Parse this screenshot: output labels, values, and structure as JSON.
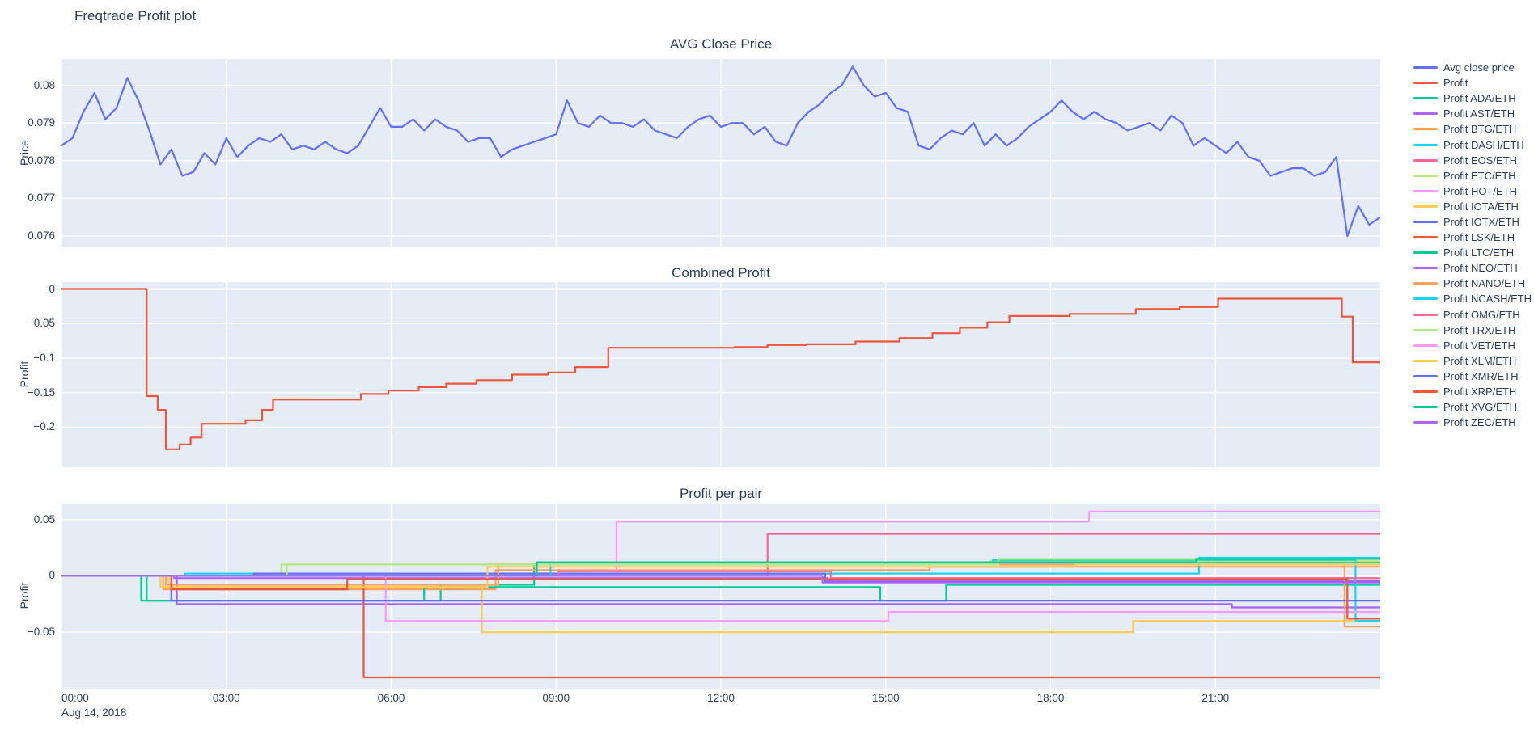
{
  "title": "Freqtrade Profit plot",
  "x_axis": {
    "ticks": [
      {
        "v": 0,
        "label": "00:00"
      },
      {
        "v": 3,
        "label": "03:00"
      },
      {
        "v": 6,
        "label": "06:00"
      },
      {
        "v": 9,
        "label": "09:00"
      },
      {
        "v": 12,
        "label": "12:00"
      },
      {
        "v": 15,
        "label": "15:00"
      },
      {
        "v": 18,
        "label": "18:00"
      },
      {
        "v": 21,
        "label": "21:00"
      }
    ],
    "date_label": "Aug 14, 2018"
  },
  "legend": {
    "items": [
      {
        "label": "Avg close price",
        "color": "#636EFA"
      },
      {
        "label": "Profit",
        "color": "#EF553B"
      },
      {
        "label": "Profit ADA/ETH",
        "color": "#00CC96"
      },
      {
        "label": "Profit AST/ETH",
        "color": "#AB63FA"
      },
      {
        "label": "Profit BTG/ETH",
        "color": "#FFA15A"
      },
      {
        "label": "Profit DASH/ETH",
        "color": "#19D3F3"
      },
      {
        "label": "Profit EOS/ETH",
        "color": "#FF6692"
      },
      {
        "label": "Profit ETC/ETH",
        "color": "#B6E880"
      },
      {
        "label": "Profit HOT/ETH",
        "color": "#FF97FF"
      },
      {
        "label": "Profit IOTA/ETH",
        "color": "#FECB52"
      },
      {
        "label": "Profit IOTX/ETH",
        "color": "#636EFA"
      },
      {
        "label": "Profit LSK/ETH",
        "color": "#EF553B"
      },
      {
        "label": "Profit LTC/ETH",
        "color": "#00CC96"
      },
      {
        "label": "Profit NEO/ETH",
        "color": "#AB63FA"
      },
      {
        "label": "Profit NANO/ETH",
        "color": "#FFA15A"
      },
      {
        "label": "Profit NCASH/ETH",
        "color": "#19D3F3"
      },
      {
        "label": "Profit OMG/ETH",
        "color": "#FF6692"
      },
      {
        "label": "Profit TRX/ETH",
        "color": "#B6E880"
      },
      {
        "label": "Profit VET/ETH",
        "color": "#FF97FF"
      },
      {
        "label": "Profit XLM/ETH",
        "color": "#FECB52"
      },
      {
        "label": "Profit XMR/ETH",
        "color": "#636EFA"
      },
      {
        "label": "Profit XRP/ETH",
        "color": "#EF553B"
      },
      {
        "label": "Profit XVG/ETH",
        "color": "#00CC96"
      },
      {
        "label": "Profit ZEC/ETH",
        "color": "#AB63FA"
      }
    ]
  },
  "chart_data": [
    {
      "type": "line",
      "title": "AVG Close Price",
      "ylabel": "Price",
      "xlim": [
        0,
        24
      ],
      "ylim": [
        0.0757,
        0.0807
      ],
      "grid": true,
      "legend_position": "right",
      "yticks": [
        {
          "v": 0.076,
          "label": "0.076"
        },
        {
          "v": 0.077,
          "label": "0.077"
        },
        {
          "v": 0.078,
          "label": "0.078"
        },
        {
          "v": 0.079,
          "label": "0.079"
        },
        {
          "v": 0.08,
          "label": "0.08"
        }
      ],
      "series": [
        {
          "name": "Avg close price",
          "color": "#636EFA",
          "mode": "line",
          "x_start": 0,
          "x_step": 0.2,
          "y": [
            0.0784,
            0.0786,
            0.0793,
            0.0798,
            0.0791,
            0.0794,
            0.0802,
            0.0796,
            0.0788,
            0.0779,
            0.0783,
            0.0776,
            0.0777,
            0.0782,
            0.0779,
            0.0786,
            0.0781,
            0.0784,
            0.0786,
            0.0785,
            0.0787,
            0.0783,
            0.0784,
            0.0783,
            0.0785,
            0.0783,
            0.0782,
            0.0784,
            0.0789,
            0.0794,
            0.0789,
            0.0789,
            0.0791,
            0.0788,
            0.0791,
            0.0789,
            0.0788,
            0.0785,
            0.0786,
            0.0786,
            0.0781,
            0.0783,
            0.0784,
            0.0785,
            0.0786,
            0.0787,
            0.0796,
            0.079,
            0.0789,
            0.0792,
            0.079,
            0.079,
            0.0789,
            0.0791,
            0.0788,
            0.0787,
            0.0786,
            0.0789,
            0.0791,
            0.0792,
            0.0789,
            0.079,
            0.079,
            0.0787,
            0.0789,
            0.0785,
            0.0784,
            0.079,
            0.0793,
            0.0795,
            0.0798,
            0.08,
            0.0805,
            0.08,
            0.0797,
            0.0798,
            0.0794,
            0.0793,
            0.0784,
            0.0783,
            0.0786,
            0.0788,
            0.0787,
            0.079,
            0.0784,
            0.0787,
            0.0784,
            0.0786,
            0.0789,
            0.0791,
            0.0793,
            0.0796,
            0.0793,
            0.0791,
            0.0793,
            0.0791,
            0.079,
            0.0788,
            0.0789,
            0.079,
            0.0788,
            0.0792,
            0.079,
            0.0784,
            0.0786,
            0.0784,
            0.0782,
            0.0785,
            0.0781,
            0.078,
            0.0776,
            0.0777,
            0.0778,
            0.0778,
            0.0776,
            0.0777,
            0.0781,
            0.076,
            0.0768,
            0.0763,
            0.0765
          ]
        }
      ]
    },
    {
      "type": "line",
      "title": "Combined Profit",
      "ylabel": "Profit",
      "xlim": [
        0,
        24
      ],
      "ylim": [
        -0.258,
        0.01
      ],
      "grid": true,
      "yticks": [
        {
          "v": 0,
          "label": "0"
        },
        {
          "v": -0.05,
          "label": "−0.05"
        },
        {
          "v": -0.1,
          "label": "−0.1"
        },
        {
          "v": -0.15,
          "label": "−0.15"
        },
        {
          "v": -0.2,
          "label": "−0.2"
        }
      ],
      "series": [
        {
          "name": "Profit",
          "color": "#EF553B",
          "mode": "steps",
          "points": [
            [
              0,
              0
            ],
            [
              1.55,
              -0.155
            ],
            [
              1.75,
              -0.175
            ],
            [
              1.9,
              -0.232
            ],
            [
              2.15,
              -0.225
            ],
            [
              2.35,
              -0.215
            ],
            [
              2.55,
              -0.195
            ],
            [
              3.35,
              -0.19
            ],
            [
              3.65,
              -0.175
            ],
            [
              3.85,
              -0.16
            ],
            [
              5.45,
              -0.152
            ],
            [
              5.95,
              -0.147
            ],
            [
              6.5,
              -0.142
            ],
            [
              7.0,
              -0.137
            ],
            [
              7.55,
              -0.132
            ],
            [
              8.2,
              -0.124
            ],
            [
              8.85,
              -0.121
            ],
            [
              9.35,
              -0.113
            ],
            [
              9.95,
              -0.085
            ],
            [
              12.25,
              -0.084
            ],
            [
              12.85,
              -0.081
            ],
            [
              13.55,
              -0.08
            ],
            [
              14.45,
              -0.076
            ],
            [
              15.25,
              -0.071
            ],
            [
              15.85,
              -0.064
            ],
            [
              16.35,
              -0.056
            ],
            [
              16.85,
              -0.048
            ],
            [
              17.25,
              -0.039
            ],
            [
              18.35,
              -0.036
            ],
            [
              19.55,
              -0.029
            ],
            [
              20.35,
              -0.026
            ],
            [
              21.05,
              -0.014
            ],
            [
              23.3,
              -0.04
            ],
            [
              23.5,
              -0.106
            ],
            [
              24,
              -0.106
            ]
          ]
        }
      ]
    },
    {
      "type": "line",
      "title": "Profit per pair",
      "ylabel": "Profit",
      "xlim": [
        0,
        24
      ],
      "ylim": [
        -0.1,
        0.064
      ],
      "grid": true,
      "yticks": [
        {
          "v": 0.05,
          "label": "0.05"
        },
        {
          "v": 0,
          "label": "0"
        },
        {
          "v": -0.05,
          "label": "−0.05"
        }
      ],
      "series": [
        {
          "name": "Profit ADA/ETH",
          "color": "#00CC96",
          "mode": "steps",
          "points": [
            [
              0,
              0
            ],
            [
              1.45,
              -0.022
            ],
            [
              6.9,
              -0.008
            ],
            [
              8.6,
              0.01
            ],
            [
              20.6,
              0.012
            ],
            [
              24,
              0.012
            ]
          ]
        },
        {
          "name": "Profit AST/ETH",
          "color": "#AB63FA",
          "mode": "steps",
          "points": [
            [
              0,
              0
            ],
            [
              2.1,
              -0.025
            ],
            [
              21.3,
              -0.028
            ],
            [
              24,
              -0.028
            ]
          ]
        },
        {
          "name": "Profit BTG/ETH",
          "color": "#FFA15A",
          "mode": "steps",
          "points": [
            [
              0,
              0
            ],
            [
              1.85,
              -0.012
            ],
            [
              7.9,
              0.005
            ],
            [
              15.8,
              0.008
            ],
            [
              24,
              0.008
            ]
          ]
        },
        {
          "name": "Profit DASH/ETH",
          "color": "#19D3F3",
          "mode": "steps",
          "points": [
            [
              0,
              0
            ],
            [
              2.25,
              0.002
            ],
            [
              20.7,
              0.016
            ],
            [
              24,
              0.016
            ]
          ]
        },
        {
          "name": "Profit EOS/ETH",
          "color": "#FF6692",
          "mode": "steps",
          "points": [
            [
              0,
              0
            ],
            [
              12.85,
              0.037
            ],
            [
              24,
              0.037
            ]
          ]
        },
        {
          "name": "Profit ETC/ETH",
          "color": "#B6E880",
          "mode": "steps",
          "points": [
            [
              0,
              0
            ],
            [
              4.0,
              0.01
            ],
            [
              16.9,
              0.013
            ],
            [
              24,
              0.013
            ]
          ]
        },
        {
          "name": "Profit HOT/ETH",
          "color": "#FF97FF",
          "mode": "steps",
          "points": [
            [
              0,
              0
            ],
            [
              10.1,
              0.048
            ],
            [
              18.7,
              0.057
            ],
            [
              24,
              0.057
            ]
          ]
        },
        {
          "name": "Profit IOTA/ETH",
          "color": "#FECB52",
          "mode": "steps",
          "points": [
            [
              0,
              0
            ],
            [
              1.95,
              -0.01
            ],
            [
              7.65,
              -0.05
            ],
            [
              19.5,
              -0.04
            ],
            [
              24,
              -0.04
            ]
          ]
        },
        {
          "name": "Profit IOTX/ETH",
          "color": "#636EFA",
          "mode": "steps",
          "points": [
            [
              0,
              0
            ],
            [
              3.5,
              0.002
            ],
            [
              13.9,
              -0.005
            ],
            [
              24,
              -0.005
            ]
          ]
        },
        {
          "name": "Profit LSK/ETH",
          "color": "#EF553B",
          "mode": "steps",
          "points": [
            [
              0,
              0
            ],
            [
              5.5,
              -0.09
            ],
            [
              24,
              -0.09
            ]
          ]
        },
        {
          "name": "Profit LTC/ETH",
          "color": "#00CC96",
          "mode": "steps",
          "points": [
            [
              0,
              0
            ],
            [
              1.55,
              -0.022
            ],
            [
              6.6,
              -0.01
            ],
            [
              14.9,
              -0.022
            ],
            [
              16.1,
              -0.008
            ],
            [
              24,
              -0.008
            ]
          ]
        },
        {
          "name": "Profit NEO/ETH",
          "color": "#AB63FA",
          "mode": "steps",
          "points": [
            [
              0,
              0
            ],
            [
              2.05,
              -0.002
            ],
            [
              13.95,
              -0.004
            ],
            [
              24,
              -0.004
            ]
          ]
        },
        {
          "name": "Profit NANO/ETH",
          "color": "#FFA15A",
          "mode": "steps",
          "points": [
            [
              0,
              0
            ],
            [
              1.9,
              -0.008
            ],
            [
              7.95,
              0.01
            ],
            [
              23.35,
              -0.045
            ],
            [
              24,
              -0.045
            ]
          ]
        },
        {
          "name": "Profit NCASH/ETH",
          "color": "#19D3F3",
          "mode": "steps",
          "points": [
            [
              0,
              0
            ],
            [
              8.9,
              0.012
            ],
            [
              16.95,
              0.014
            ],
            [
              23.55,
              -0.04
            ],
            [
              24,
              -0.04
            ]
          ]
        },
        {
          "name": "Profit OMG/ETH",
          "color": "#FF6692",
          "mode": "steps",
          "points": [
            [
              0,
              0
            ],
            [
              9.05,
              0.004
            ],
            [
              14.0,
              -0.002
            ],
            [
              24,
              -0.002
            ]
          ]
        },
        {
          "name": "Profit TRX/ETH",
          "color": "#B6E880",
          "mode": "steps",
          "points": [
            [
              0,
              0
            ],
            [
              4.1,
              0.01
            ],
            [
              17.05,
              0.015
            ],
            [
              24,
              0.015
            ]
          ]
        },
        {
          "name": "Profit VET/ETH",
          "color": "#FF97FF",
          "mode": "steps",
          "points": [
            [
              0,
              0
            ],
            [
              5.9,
              -0.04
            ],
            [
              15.05,
              -0.032
            ],
            [
              24,
              -0.032
            ]
          ]
        },
        {
          "name": "Profit XLM/ETH",
          "color": "#FECB52",
          "mode": "steps",
          "points": [
            [
              0,
              0
            ],
            [
              1.8,
              -0.01
            ],
            [
              7.75,
              0.008
            ],
            [
              18.45,
              0.01
            ],
            [
              24,
              0.01
            ]
          ]
        },
        {
          "name": "Profit XMR/ETH",
          "color": "#636EFA",
          "mode": "steps",
          "points": [
            [
              0,
              0
            ],
            [
              2.0,
              -0.022
            ],
            [
              24,
              -0.022
            ]
          ]
        },
        {
          "name": "Profit XRP/ETH",
          "color": "#EF553B",
          "mode": "steps",
          "points": [
            [
              0,
              0
            ],
            [
              2.0,
              -0.012
            ],
            [
              5.2,
              -0.003
            ],
            [
              23.4,
              -0.038
            ],
            [
              24,
              -0.038
            ]
          ]
        },
        {
          "name": "Profit XVG/ETH",
          "color": "#00CC96",
          "mode": "steps",
          "points": [
            [
              0,
              0
            ],
            [
              8.65,
              0.012
            ],
            [
              20.65,
              0.015
            ],
            [
              24,
              0.015
            ]
          ]
        },
        {
          "name": "Profit ZEC/ETH",
          "color": "#AB63FA",
          "mode": "steps",
          "points": [
            [
              0,
              0
            ],
            [
              13.85,
              -0.006
            ],
            [
              24,
              -0.006
            ]
          ]
        }
      ]
    }
  ]
}
